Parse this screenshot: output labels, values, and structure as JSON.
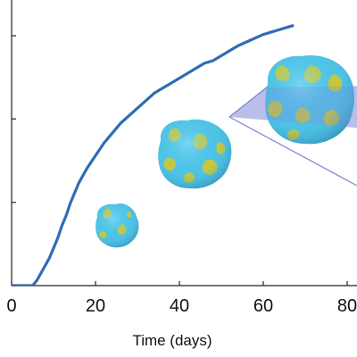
{
  "chart_data": {
    "type": "line",
    "title": "",
    "xlabel": "Time (days)",
    "ylabel": "",
    "xlim": [
      0,
      80
    ],
    "ylim": [
      0,
      100
    ],
    "x_ticks": [
      0,
      20,
      40,
      60,
      80
    ],
    "x_tick_labels": [
      "0",
      "20",
      "40",
      "60",
      "80"
    ],
    "y_ticks": [
      0,
      33.3,
      66.7,
      100
    ],
    "grid": false,
    "legend": "none",
    "series": [
      {
        "x": [
          0,
          5,
          6,
          7,
          8,
          9,
          10,
          11,
          12,
          13,
          14,
          15,
          16,
          18,
          20,
          22,
          24,
          26,
          28,
          30,
          32,
          34,
          36,
          38,
          40,
          42,
          44,
          46,
          48,
          50,
          52,
          54,
          56,
          58,
          60,
          62,
          64,
          66,
          67
        ],
        "y": [
          0,
          0,
          2,
          5,
          8,
          11,
          15,
          19,
          24,
          28,
          33,
          37,
          41,
          47,
          52,
          57,
          61,
          65,
          68,
          71,
          74,
          77,
          79,
          81,
          83,
          85,
          87,
          89,
          90,
          92,
          94,
          96,
          97.5,
          99,
          100.5,
          101.5,
          102.5,
          103.5,
          104
        ],
        "color": "#2e6db4"
      }
    ]
  },
  "annotations": {
    "spheroid_colors": {
      "primary": "#4ec3e6",
      "secondary": "#c8c83a",
      "shadow": "#2a86b8"
    },
    "spheroids": [
      {
        "name": "small-spheroid",
        "at_time": 22
      },
      {
        "name": "medium-spheroid",
        "at_time": 40
      },
      {
        "name": "large-spheroid",
        "at_time": 62
      }
    ],
    "slice_plane_color": "#7a7fd6"
  }
}
